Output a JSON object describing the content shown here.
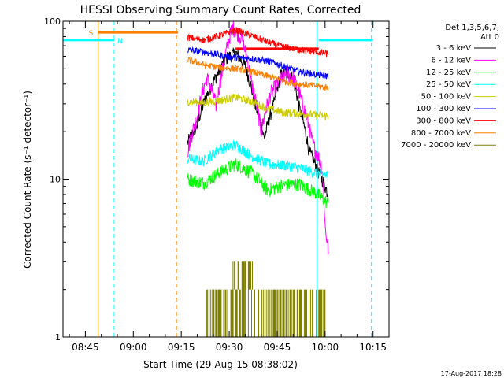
{
  "chart_data": {
    "type": "line",
    "title": "HESSI Observing Summary Count Rates, Corrected",
    "xlabel": "Start Time (29-Aug-15 08:38:02)",
    "ylabel": "Corrected Count Rate (s⁻¹ detector⁻¹)",
    "yscale": "log",
    "ylim": [
      1,
      100
    ],
    "xlim": [
      "08:38",
      "10:20"
    ],
    "xtick_labels": [
      "08:45",
      "09:00",
      "09:15",
      "09:30",
      "09:45",
      "10:00",
      "10:15"
    ],
    "xtick_minutes": [
      525,
      540,
      555,
      570,
      585,
      600,
      615
    ],
    "ytick_labels": [
      "1",
      "10",
      "100"
    ],
    "ytick_values": [
      1,
      10,
      100
    ],
    "legend_title": [
      "Det 1,3,5,6,7,",
      "Att 0"
    ],
    "legend_position": "right-outside",
    "series": [
      {
        "name": "3 - 6 keV",
        "color": "#000000",
        "x": [
          557,
          560,
          563,
          566,
          569,
          572,
          575,
          578,
          581,
          584,
          586,
          588,
          590,
          592,
          595,
          598,
          600,
          601
        ],
        "y": [
          17,
          22,
          34,
          45,
          58,
          63,
          52,
          30,
          18,
          30,
          45,
          49,
          43,
          28,
          15,
          11,
          9,
          8
        ]
      },
      {
        "name": "6 - 12 keV",
        "color": "#ff00ff",
        "x": [
          557,
          560,
          563,
          566,
          568,
          571,
          574,
          577,
          580,
          583,
          586,
          588,
          590,
          593,
          596,
          599,
          600,
          601
        ],
        "y": [
          15,
          25,
          44,
          29,
          50,
          92,
          78,
          40,
          20,
          35,
          42,
          47,
          44,
          30,
          17,
          12,
          5,
          3.5
        ]
      },
      {
        "name": "12 - 25 keV",
        "color": "#00ff00",
        "x": [
          557,
          562,
          567,
          572,
          577,
          582,
          587,
          592,
          597,
          601
        ],
        "y": [
          10,
          9.5,
          11,
          12.5,
          11,
          8.5,
          9.2,
          9.3,
          8.2,
          7
        ]
      },
      {
        "name": "25 - 50 keV",
        "color": "#00ffff",
        "x": [
          557,
          562,
          567,
          572,
          577,
          582,
          587,
          592,
          597,
          601
        ],
        "y": [
          13.5,
          13,
          15.5,
          16.5,
          14,
          12.5,
          12.3,
          11.8,
          11,
          10.5
        ]
      },
      {
        "name": "50 - 100 keV",
        "color": "#cccc00",
        "x": [
          557,
          562,
          567,
          572,
          577,
          582,
          587,
          592,
          597,
          601
        ],
        "y": [
          31,
          30.5,
          31.5,
          33,
          31,
          28,
          26.5,
          26,
          25.5,
          25
        ]
      },
      {
        "name": "100 - 300 keV",
        "color": "#0000ff",
        "x": [
          557,
          562,
          567,
          572,
          577,
          582,
          587,
          592,
          597,
          601
        ],
        "y": [
          66,
          64,
          61,
          59,
          58,
          56,
          52,
          48,
          46,
          45
        ]
      },
      {
        "name": "300 - 800 keV",
        "color": "#ff0000",
        "x": [
          557,
          562,
          567,
          572,
          577,
          582,
          587,
          592,
          597,
          601
        ],
        "y": [
          79,
          76,
          81,
          88,
          81,
          74,
          69,
          66,
          64,
          62
        ]
      },
      {
        "name": "800 - 7000 keV",
        "color": "#ff8000",
        "x": [
          557,
          562,
          567,
          572,
          577,
          582,
          587,
          592,
          597,
          601
        ],
        "y": [
          57,
          53,
          51,
          50,
          48,
          45,
          42,
          40,
          39,
          38
        ]
      },
      {
        "name": "7000 - 20000 keV",
        "color": "#808000",
        "x": [
          563,
          567,
          571,
          575,
          580,
          585,
          590,
          595,
          600
        ],
        "y": [
          2,
          2,
          2.5,
          3,
          2,
          1.5,
          2,
          2,
          1.5
        ]
      }
    ],
    "markers": {
      "saa_label": "S",
      "saa_color": "#ff8000",
      "saa_bar": [
        {
          "start": 529,
          "end": 554,
          "y": 85
        }
      ],
      "saa_line": 529,
      "saa_dashed": 553.5,
      "night_label": "N",
      "night_color": "#00ffff",
      "night_bar": [
        {
          "start": 508,
          "end": 534,
          "y": 76
        },
        {
          "start": 598,
          "end": 615,
          "y": 76
        }
      ],
      "night_solid": 597.5,
      "night_dashed": [
        534,
        614.5
      ],
      "flare_flag_color": "#ff0000",
      "flare_flag": [
        {
          "start": 572,
          "end": 598,
          "y": 67
        }
      ]
    }
  },
  "footer": {
    "timestamp": "17-Aug-2017 18:28"
  }
}
